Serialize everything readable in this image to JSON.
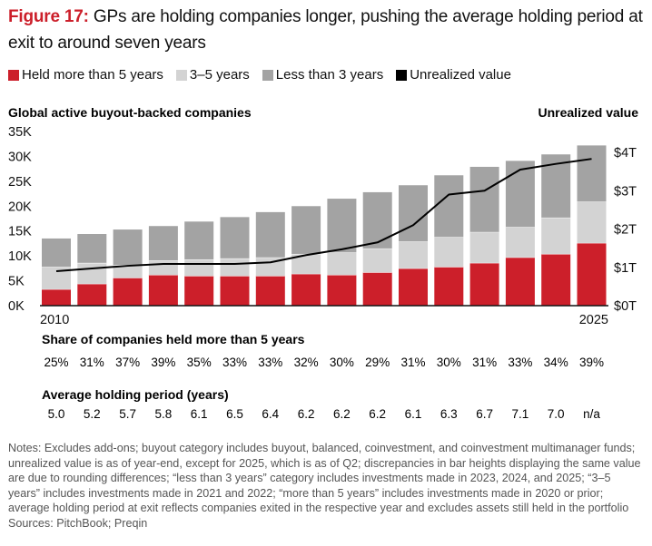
{
  "title": {
    "figure": "Figure 17:",
    "text": " GPs are holding companies longer, pushing the average holding period at exit to around seven years"
  },
  "colors": {
    "held_more_5": "#cc1f2a",
    "three_five": "#d3d3d3",
    "less_3": "#a3a3a3",
    "unrealized": "#000000"
  },
  "legend": [
    "Held more than 5 years",
    "3–5 years",
    "Less than 3 years",
    "Unrealized value"
  ],
  "chart_data": {
    "type": "bar",
    "stacked": true,
    "left_axis_label": "Global active buyout-backed companies",
    "right_axis_label": "Unrealized value",
    "ylim": [
      0,
      35000
    ],
    "yticks": [
      "0K",
      "5K",
      "10K",
      "15K",
      "20K",
      "25K",
      "30K",
      "35K"
    ],
    "y2lim": [
      0,
      4
    ],
    "y2ticks": [
      "$0T",
      "$1T",
      "$2T",
      "$3T",
      "$4T"
    ],
    "categories": [
      2010,
      2011,
      2012,
      2013,
      2014,
      2015,
      2016,
      2017,
      2018,
      2019,
      2020,
      2021,
      2022,
      2023,
      2024,
      2025
    ],
    "xtick_labels": [
      "2010",
      "2025"
    ],
    "series": [
      {
        "name": "Held more than 5 years",
        "values": [
          3300,
          4400,
          5600,
          6200,
          6000,
          6000,
          6000,
          6400,
          6200,
          6700,
          7500,
          7800,
          8600,
          9700,
          10400,
          12600
        ]
      },
      {
        "name": "3–5 years",
        "values": [
          4500,
          4200,
          2600,
          2900,
          3300,
          3500,
          3700,
          4000,
          4500,
          4800,
          5400,
          6000,
          6200,
          6100,
          7300,
          8300
        ]
      },
      {
        "name": "Less than 3 years",
        "values": [
          5700,
          5800,
          7100,
          6900,
          7600,
          8300,
          9100,
          9600,
          10800,
          11300,
          11300,
          12400,
          13100,
          13300,
          12700,
          11300
        ]
      }
    ],
    "line": {
      "name": "Unrealized value",
      "unit": "$T",
      "values": [
        0.9,
        0.97,
        1.04,
        1.09,
        1.09,
        1.09,
        1.13,
        1.32,
        1.47,
        1.65,
        2.1,
        2.9,
        3.0,
        3.55,
        3.7,
        3.83
      ]
    },
    "share_held_more_5": {
      "label": "Share of companies held more than 5 years",
      "values": [
        "25%",
        "31%",
        "37%",
        "39%",
        "35%",
        "33%",
        "33%",
        "32%",
        "30%",
        "29%",
        "31%",
        "30%",
        "31%",
        "33%",
        "34%",
        "39%"
      ]
    },
    "avg_holding_period": {
      "label": "Average holding period (years)",
      "values": [
        "5.0",
        "5.2",
        "5.7",
        "5.8",
        "6.1",
        "6.5",
        "6.4",
        "6.2",
        "6.2",
        "6.2",
        "6.1",
        "6.3",
        "6.7",
        "7.1",
        "7.0",
        "n/a"
      ]
    }
  },
  "notes": "Notes: Excludes add-ons; buyout category includes buyout, balanced, coinvestment, and coinvestment multimanager funds; unrealized value is as of year-end, except for 2025, which is as of Q2; discrepancies in bar heights displaying the same value are due to rounding differences; “less than 3 years” category includes investments made in 2023, 2024, and 2025; “3–5 years” includes investments made in 2021 and 2022; “more than 5 years” includes investments made in 2020 or prior; average holding period at exit reflects companies exited in the respective year and excludes assets still held in the portfolio",
  "sources": "Sources: PitchBook; Preqin"
}
